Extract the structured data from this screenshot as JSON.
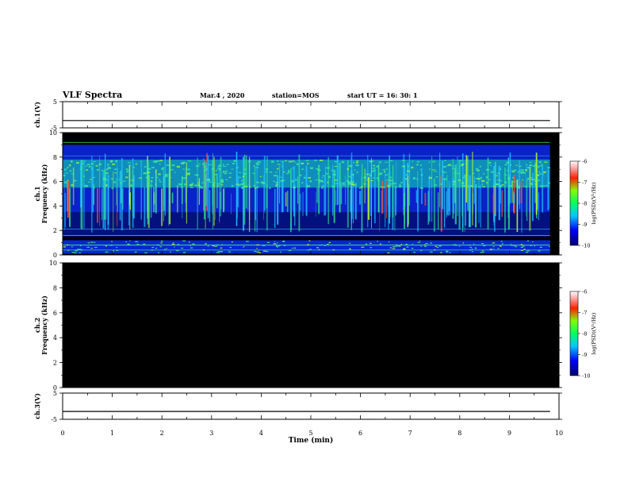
{
  "header": {
    "title": "VLF Spectra",
    "date": "Mar.4 , 2020",
    "station": "station=MOS",
    "start": "start UT =   16: 30: 1"
  },
  "chart_data": [
    {
      "type": "line",
      "panel": "ch1-waveform",
      "ylabel": "ch.1(V)",
      "ylim": [
        -5,
        5
      ],
      "yticks": [
        "5",
        "-5"
      ],
      "x": [
        0,
        9.82
      ],
      "values": [
        -2.2,
        -2.2
      ]
    },
    {
      "type": "heatmap",
      "panel": "ch1-spectrogram",
      "ylabel": "ch.1\nFrequency (kHz)",
      "ylim": [
        0,
        10
      ],
      "yticks": [
        "0",
        "2",
        "4",
        "6",
        "8",
        "10"
      ],
      "xlim": [
        0,
        10
      ],
      "colorbar": {
        "label": "log(PSD)(V²/Hz)",
        "range": [
          -10,
          -6
        ],
        "ticks": [
          "-6",
          "-7",
          "-8",
          "-9",
          "-10"
        ]
      },
      "cutoff_frequency_khz": 9.2,
      "emission_band_khz": [
        1.5,
        9.0
      ],
      "intense_band_khz": [
        5.5,
        7.8
      ]
    },
    {
      "type": "heatmap",
      "panel": "ch2-spectrogram",
      "ylabel": "ch.2\nFrequency (kHz)",
      "ylim": [
        0,
        10
      ],
      "yticks": [
        "0",
        "2",
        "4",
        "6",
        "8",
        "10"
      ],
      "xlim": [
        0,
        10
      ],
      "colorbar": {
        "label": "log(PSD)(V²/Hz)",
        "range": [
          -10,
          -6
        ],
        "ticks": [
          "-6",
          "-7",
          "-8",
          "-9",
          "-10"
        ]
      },
      "fill": "no signal"
    },
    {
      "type": "line",
      "panel": "ch3-waveform",
      "ylabel": "ch.3(V)",
      "ylim": [
        -5,
        5
      ],
      "yticks": [
        "5",
        "-5"
      ],
      "x": [
        0,
        9.82
      ],
      "values": [
        -2.0,
        -2.0
      ]
    }
  ],
  "xaxis": {
    "label": "Time (min)",
    "ticks": [
      "0",
      "1",
      "2",
      "3",
      "4",
      "5",
      "6",
      "7",
      "8",
      "9",
      "10"
    ]
  }
}
